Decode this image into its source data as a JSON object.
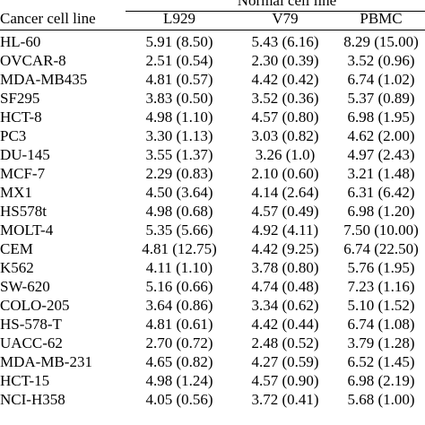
{
  "header": {
    "group": "Normal cell line",
    "columns": [
      "Cancer cell line",
      "L929",
      "V79",
      "PBMC"
    ]
  },
  "table": {
    "rows": [
      [
        "HL-60",
        "5.91 (8.50)",
        "5.43 (6.16)",
        "8.29 (15.00)"
      ],
      [
        "OVCAR-8",
        "2.51 (0.54)",
        "2.30 (0.39)",
        "3.52 (0.96)"
      ],
      [
        "MDA-MB435",
        "4.81 (0.57)",
        "4.42 (0.42)",
        "6.74 (1.02)"
      ],
      [
        "SF295",
        "3.83 (0.50)",
        "3.52 (0.36)",
        "5.37 (0.89)"
      ],
      [
        "HCT-8",
        "4.98 (1.10)",
        "4.57 (0.80)",
        "6.98 (1.95)"
      ],
      [
        "PC3",
        "3.30 (1.13)",
        "3.03 (0.82)",
        "4.62 (2.00)"
      ],
      [
        "DU-145",
        "3.55 (1.37)",
        "3.26 (1.0)",
        "4.97 (2.43)"
      ],
      [
        "MCF-7",
        "2.29 (0.83)",
        "2.10 (0.60)",
        "3.21 (1.48)"
      ],
      [
        "MX1",
        "4.50 (3.64)",
        "4.14 (2.64)",
        "6.31 (6.42)"
      ],
      [
        "HS578t",
        "4.98 (0.68)",
        "4.57 (0.49)",
        "6.98 (1.20)"
      ],
      [
        "MOLT-4",
        "5.35 (5.66)",
        "4.92 (4.11)",
        "7.50 (10.00)"
      ],
      [
        "CEM",
        "4.81 (12.75)",
        "4.42 (9.25)",
        "6.74 (22.50)"
      ],
      [
        "K562",
        "4.11 (1.10)",
        "3.78 (0.80)",
        "5.76 (1.95)"
      ],
      [
        "SW-620",
        "5.16 (0.66)",
        "4.74 (0.48)",
        "7.23 (1.16)"
      ],
      [
        "COLO-205",
        "3.64 (0.86)",
        "3.34 (0.62)",
        "5.10 (1.52)"
      ],
      [
        "HS-578-T",
        "4.81 (0.61)",
        "4.42 (0.44)",
        "6.74 (1.08)"
      ],
      [
        "UACC-62",
        "2.70 (0.72)",
        "2.48 (0.52)",
        "3.79 (1.28)"
      ],
      [
        "MDA-MB-231",
        "4.65 (0.82)",
        "4.27 (0.59)",
        "6.52 (1.45)"
      ],
      [
        "HCT-15",
        "4.98 (1.24)",
        "4.57 (0.90)",
        "6.98 (2.19)"
      ],
      [
        "NCI-H358",
        "4.05 (0.56)",
        "3.72 (0.41)",
        "5.68 (1.00)"
      ]
    ]
  }
}
